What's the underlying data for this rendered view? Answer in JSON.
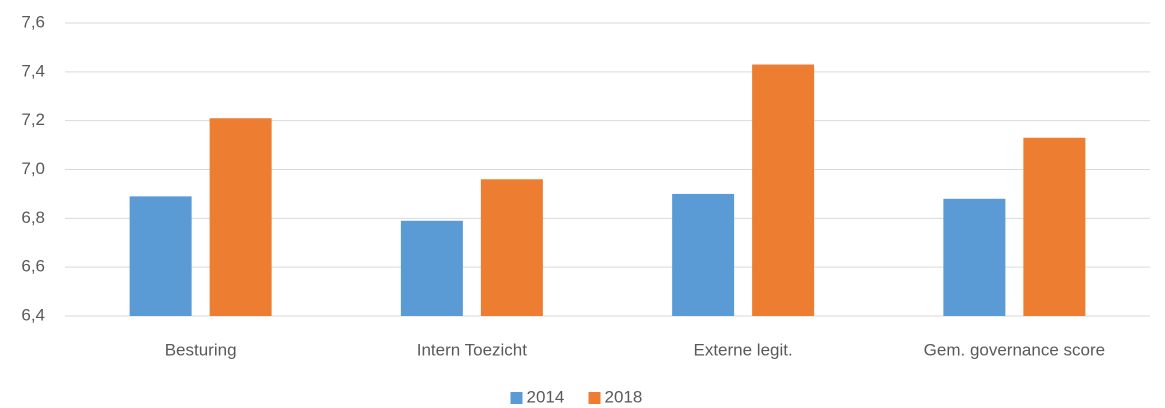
{
  "chart_data": {
    "type": "bar",
    "categories": [
      "Besturing",
      "Intern Toezicht",
      "Externe legit.",
      "Gem. governance score"
    ],
    "series": [
      {
        "name": "2014",
        "color": "#5b9bd5",
        "values": [
          6.89,
          6.79,
          6.9,
          6.88
        ]
      },
      {
        "name": "2018",
        "color": "#ed7d31",
        "values": [
          7.21,
          6.96,
          7.43,
          7.13
        ]
      }
    ],
    "ylim": [
      6.4,
      7.6
    ],
    "yticks": [
      {
        "value": 6.4,
        "label": "6,4"
      },
      {
        "value": 6.6,
        "label": "6,6"
      },
      {
        "value": 6.8,
        "label": "6,8"
      },
      {
        "value": 7.0,
        "label": "7,0"
      },
      {
        "value": 7.2,
        "label": "7,2"
      },
      {
        "value": 7.4,
        "label": "7,4"
      },
      {
        "value": 7.6,
        "label": "7,6"
      }
    ],
    "grid": true,
    "legend": "bottom"
  }
}
